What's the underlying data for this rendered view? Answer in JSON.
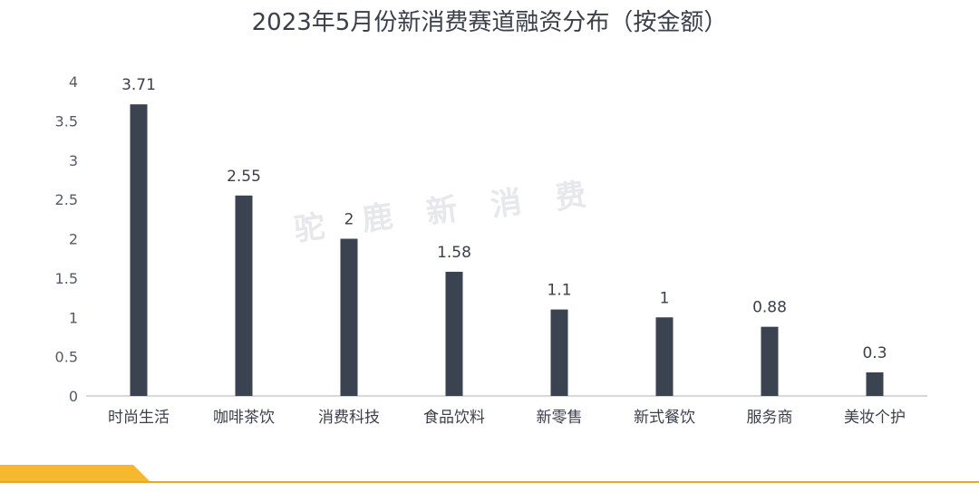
{
  "chart_data": {
    "type": "bar",
    "title": "2023年5月份新消费赛道融资分布（按金额）",
    "categories": [
      "时尚生活",
      "咖啡茶饮",
      "消费科技",
      "食品饮料",
      "新零售",
      "新式餐饮",
      "服务商",
      "美妆个护"
    ],
    "values": [
      3.71,
      2.55,
      2,
      1.58,
      1.1,
      1,
      0.88,
      0.3
    ],
    "value_labels": [
      "3.71",
      "2.55",
      "2",
      "1.58",
      "1.1",
      "1",
      "0.88",
      "0.3"
    ],
    "y_ticks": [
      "0",
      "0.5",
      "1",
      "1.5",
      "2",
      "2.5",
      "3",
      "3.5",
      "4"
    ],
    "ylim": [
      0,
      4
    ],
    "xlabel": "",
    "ylabel": "",
    "grid": false,
    "legend": "none"
  },
  "watermark": [
    "驼",
    "鹿",
    "新",
    "消",
    "费"
  ],
  "colors": {
    "bar": "#3b4250",
    "axis": "#c9ccd2",
    "accent": "#f5b82e",
    "accent_line": "#e8a820"
  }
}
